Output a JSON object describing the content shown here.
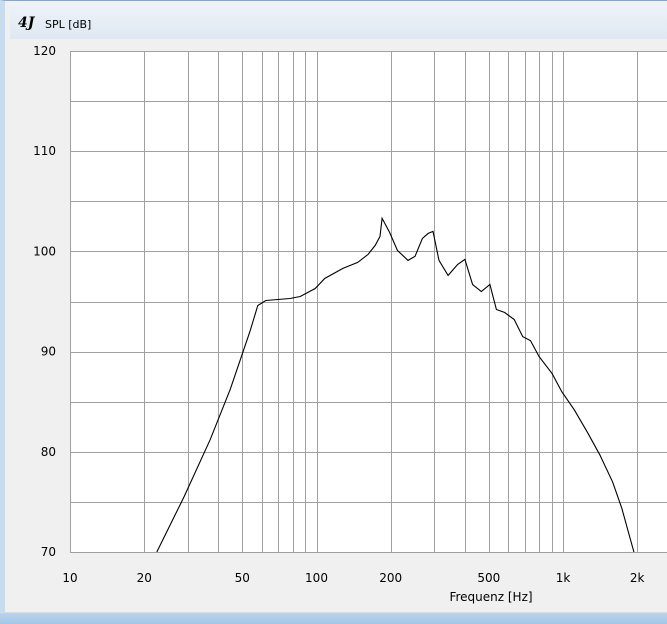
{
  "chart_data": {
    "type": "line",
    "title": "",
    "ylabel": "SPL [dB]",
    "xlabel": "Frequenz [Hz]",
    "xscale": "log",
    "xlim": [
      10,
      2600
    ],
    "ylim": [
      70,
      120
    ],
    "grid": true,
    "x_tick_labels": [
      {
        "value": 10,
        "label": "10"
      },
      {
        "value": 20,
        "label": "20"
      },
      {
        "value": 50,
        "label": "50"
      },
      {
        "value": 100,
        "label": "100"
      },
      {
        "value": 200,
        "label": "200"
      },
      {
        "value": 500,
        "label": "500"
      },
      {
        "value": 1000,
        "label": "1k"
      },
      {
        "value": 2000,
        "label": "2k"
      }
    ],
    "y_tick_labels": [
      {
        "value": 70,
        "label": "70"
      },
      {
        "value": 80,
        "label": "80"
      },
      {
        "value": 90,
        "label": "90"
      },
      {
        "value": 100,
        "label": "100"
      },
      {
        "value": 110,
        "label": "110"
      },
      {
        "value": 120,
        "label": "120"
      }
    ],
    "series": [
      {
        "color": "#000000",
        "x": [
          22.5,
          29,
          37,
          44.6,
          53.7,
          57.8,
          62.3,
          78,
          85.9,
          98.8,
          108,
          128,
          147,
          162,
          173,
          181,
          184.5,
          198,
          213,
          235,
          251,
          269,
          284,
          297,
          314,
          342,
          374,
          400,
          430,
          466,
          505,
          537,
          580,
          634,
          686,
          738,
          800,
          903,
          989,
          1110,
          1260,
          1410,
          1590,
          1730,
          1940
        ],
        "y": [
          70,
          75.5,
          81.2,
          86.2,
          92,
          94.6,
          95.1,
          95.3,
          95.5,
          96.3,
          97.3,
          98.3,
          98.9,
          99.7,
          100.6,
          101.5,
          103.3,
          101.9,
          100.1,
          99.1,
          99.5,
          101.3,
          101.8,
          102,
          99.1,
          97.6,
          98.7,
          99.2,
          96.7,
          96,
          96.7,
          94.2,
          93.9,
          93.2,
          91.5,
          91.1,
          89.5,
          87.8,
          86,
          84.2,
          81.9,
          79.7,
          77,
          74.4,
          70
        ]
      }
    ]
  },
  "window": {
    "logo": "4J"
  }
}
